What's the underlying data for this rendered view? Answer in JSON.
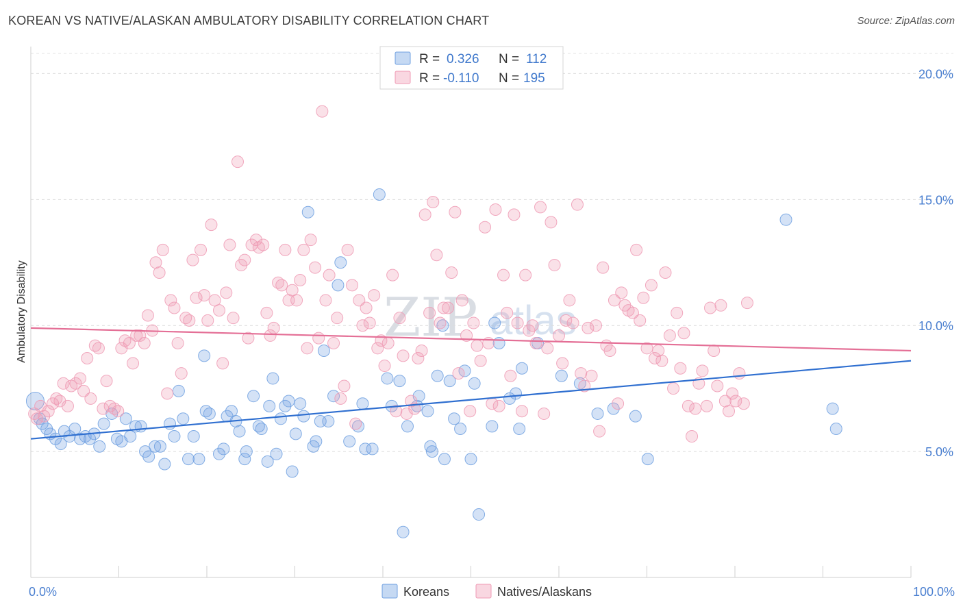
{
  "header": {
    "title": "KOREAN VS NATIVE/ALASKAN AMBULATORY DISABILITY CORRELATION CHART",
    "source": "Source: ZipAtlas.com"
  },
  "watermark": {
    "zip": "ZIP",
    "atlas": "atlas"
  },
  "stats": [
    {
      "r_label": "R =",
      "r_value": "0.326",
      "n_label": "N =",
      "n_value": "112",
      "color": "#6fa0e0"
    },
    {
      "r_label": "R =",
      "r_value": "-0.110",
      "n_label": "N =",
      "n_value": "195",
      "color": "#ef9ab4"
    }
  ],
  "legend": [
    {
      "label": "Koreans",
      "color": "#6fa0e0"
    },
    {
      "label": "Natives/Alaskans",
      "color": "#ef9ab4"
    }
  ],
  "chart_data": {
    "type": "scatter",
    "title": "KOREAN VS NATIVE/ALASKAN AMBULATORY DISABILITY CORRELATION CHART",
    "xlabel": "",
    "ylabel": "Ambulatory Disability",
    "xlim": [
      0,
      100
    ],
    "ylim": [
      0,
      20.8
    ],
    "x_ticks": [
      "0.0%",
      "100.0%"
    ],
    "y_ticks": [
      {
        "value": 5,
        "label": "5.0%"
      },
      {
        "value": 10,
        "label": "10.0%"
      },
      {
        "value": 15,
        "label": "15.0%"
      },
      {
        "value": 20,
        "label": "20.0%"
      }
    ],
    "grid": "horizontal dashed",
    "legend_position": "bottom-center",
    "series": [
      {
        "name": "Koreans",
        "color": "#6fa0e0",
        "trend": {
          "x": [
            0,
            100
          ],
          "y": [
            5.5,
            8.6
          ]
        },
        "points": [
          [
            0.5,
            7.0
          ],
          [
            1.0,
            6.3
          ],
          [
            1.3,
            6.1
          ],
          [
            1.8,
            5.9
          ],
          [
            2.2,
            5.7
          ],
          [
            2.8,
            5.5
          ],
          [
            3.4,
            5.3
          ],
          [
            3.8,
            5.8
          ],
          [
            4.4,
            5.6
          ],
          [
            5.0,
            5.9
          ],
          [
            5.6,
            5.5
          ],
          [
            6.2,
            5.6
          ],
          [
            6.7,
            5.5
          ],
          [
            7.2,
            5.7
          ],
          [
            7.8,
            5.2
          ],
          [
            8.3,
            6.1
          ],
          [
            9.2,
            6.5
          ],
          [
            9.8,
            5.5
          ],
          [
            10.3,
            5.4
          ],
          [
            10.8,
            6.3
          ],
          [
            11.3,
            5.6
          ],
          [
            11.9,
            6.0
          ],
          [
            12.5,
            6.0
          ],
          [
            13.0,
            5.0
          ],
          [
            13.4,
            4.8
          ],
          [
            14.1,
            5.2
          ],
          [
            14.7,
            5.2
          ],
          [
            15.2,
            4.5
          ],
          [
            15.8,
            6.1
          ],
          [
            16.3,
            5.6
          ],
          [
            16.8,
            7.4
          ],
          [
            17.3,
            6.3
          ],
          [
            17.9,
            4.7
          ],
          [
            18.5,
            5.6
          ],
          [
            19.1,
            4.7
          ],
          [
            19.7,
            8.8
          ],
          [
            19.9,
            6.6
          ],
          [
            20.3,
            6.5
          ],
          [
            21.4,
            4.9
          ],
          [
            21.9,
            5.1
          ],
          [
            22.3,
            6.4
          ],
          [
            22.8,
            6.6
          ],
          [
            23.3,
            6.2
          ],
          [
            23.7,
            5.8
          ],
          [
            24.3,
            4.7
          ],
          [
            24.5,
            5.0
          ],
          [
            25.3,
            7.2
          ],
          [
            25.9,
            6.0
          ],
          [
            26.2,
            5.9
          ],
          [
            26.9,
            4.6
          ],
          [
            27.1,
            6.8
          ],
          [
            27.5,
            7.9
          ],
          [
            27.9,
            4.9
          ],
          [
            28.4,
            6.3
          ],
          [
            28.9,
            6.8
          ],
          [
            29.3,
            7.0
          ],
          [
            29.7,
            4.2
          ],
          [
            30.1,
            5.7
          ],
          [
            30.6,
            6.9
          ],
          [
            31.0,
            6.4
          ],
          [
            31.5,
            14.5
          ],
          [
            32.1,
            5.2
          ],
          [
            32.4,
            5.4
          ],
          [
            32.9,
            6.2
          ],
          [
            33.3,
            9.0
          ],
          [
            33.8,
            6.2
          ],
          [
            34.4,
            7.2
          ],
          [
            34.9,
            11.6
          ],
          [
            35.2,
            12.5
          ],
          [
            36.2,
            5.4
          ],
          [
            37.2,
            6.0
          ],
          [
            37.7,
            6.9
          ],
          [
            38.0,
            5.1
          ],
          [
            38.8,
            5.1
          ],
          [
            39.6,
            15.2
          ],
          [
            40.5,
            7.9
          ],
          [
            41.0,
            6.8
          ],
          [
            41.9,
            7.8
          ],
          [
            42.3,
            1.8
          ],
          [
            42.8,
            6.0
          ],
          [
            43.9,
            6.8
          ],
          [
            44.1,
            7.2
          ],
          [
            45.1,
            6.6
          ],
          [
            45.4,
            5.2
          ],
          [
            45.6,
            5.0
          ],
          [
            46.2,
            8.0
          ],
          [
            46.8,
            10.0
          ],
          [
            47.0,
            4.7
          ],
          [
            47.6,
            7.8
          ],
          [
            48.1,
            6.3
          ],
          [
            48.8,
            5.9
          ],
          [
            49.3,
            8.2
          ],
          [
            50.0,
            4.7
          ],
          [
            50.4,
            7.7
          ],
          [
            50.9,
            2.5
          ],
          [
            52.4,
            6.0
          ],
          [
            52.7,
            10.1
          ],
          [
            53.2,
            9.3
          ],
          [
            54.4,
            7.1
          ],
          [
            55.1,
            7.3
          ],
          [
            55.5,
            5.9
          ],
          [
            55.8,
            8.3
          ],
          [
            57.6,
            9.3
          ],
          [
            60.3,
            8.0
          ],
          [
            62.4,
            7.7
          ],
          [
            64.4,
            6.5
          ],
          [
            66.2,
            6.7
          ],
          [
            68.7,
            6.4
          ],
          [
            70.1,
            4.7
          ],
          [
            85.8,
            14.2
          ],
          [
            91.1,
            6.7
          ],
          [
            91.5,
            5.9
          ]
        ]
      },
      {
        "name": "Natives/Alaskans",
        "color": "#ef9ab4",
        "trend": {
          "x": [
            0,
            100
          ],
          "y": [
            9.9,
            9.0
          ]
        },
        "points": [
          [
            0.4,
            6.5
          ],
          [
            0.7,
            6.3
          ],
          [
            1.1,
            6.8
          ],
          [
            1.5,
            6.4
          ],
          [
            2.0,
            6.6
          ],
          [
            2.5,
            6.9
          ],
          [
            2.9,
            7.1
          ],
          [
            3.3,
            7.0
          ],
          [
            3.7,
            7.7
          ],
          [
            4.2,
            6.8
          ],
          [
            4.6,
            7.6
          ],
          [
            5.1,
            7.7
          ],
          [
            5.6,
            7.9
          ],
          [
            6.0,
            7.4
          ],
          [
            6.4,
            8.7
          ],
          [
            6.8,
            7.1
          ],
          [
            7.3,
            9.2
          ],
          [
            7.7,
            9.1
          ],
          [
            8.2,
            6.7
          ],
          [
            8.6,
            7.8
          ],
          [
            9.0,
            6.8
          ],
          [
            9.5,
            6.7
          ],
          [
            9.9,
            6.6
          ],
          [
            10.3,
            9.1
          ],
          [
            10.7,
            9.4
          ],
          [
            11.2,
            9.3
          ],
          [
            11.6,
            8.5
          ],
          [
            12.0,
            9.6
          ],
          [
            12.4,
            9.6
          ],
          [
            12.9,
            9.3
          ],
          [
            13.3,
            10.4
          ],
          [
            13.8,
            9.8
          ],
          [
            14.2,
            12.5
          ],
          [
            14.6,
            12.1
          ],
          [
            15.0,
            13.0
          ],
          [
            15.5,
            7.3
          ],
          [
            15.9,
            11.0
          ],
          [
            16.3,
            10.7
          ],
          [
            16.7,
            9.3
          ],
          [
            17.1,
            8.1
          ],
          [
            17.6,
            10.3
          ],
          [
            18.0,
            10.2
          ],
          [
            18.4,
            12.6
          ],
          [
            18.8,
            11.1
          ],
          [
            19.3,
            13.0
          ],
          [
            19.7,
            11.2
          ],
          [
            20.1,
            10.2
          ],
          [
            20.5,
            14.0
          ],
          [
            20.9,
            11.0
          ],
          [
            21.4,
            10.6
          ],
          [
            21.8,
            8.5
          ],
          [
            22.2,
            11.3
          ],
          [
            22.6,
            13.2
          ],
          [
            23.0,
            10.3
          ],
          [
            23.5,
            16.5
          ],
          [
            23.9,
            12.4
          ],
          [
            24.3,
            12.6
          ],
          [
            24.7,
            9.5
          ],
          [
            25.1,
            13.2
          ],
          [
            25.6,
            13.4
          ],
          [
            25.9,
            13.1
          ],
          [
            26.4,
            13.2
          ],
          [
            26.8,
            10.5
          ],
          [
            27.2,
            9.6
          ],
          [
            27.6,
            9.9
          ],
          [
            28.1,
            11.7
          ],
          [
            28.5,
            11.6
          ],
          [
            28.9,
            13.0
          ],
          [
            29.3,
            11.0
          ],
          [
            29.7,
            11.4
          ],
          [
            30.2,
            11.0
          ],
          [
            30.6,
            11.8
          ],
          [
            31.0,
            13.0
          ],
          [
            31.4,
            9.1
          ],
          [
            31.8,
            13.4
          ],
          [
            32.3,
            12.3
          ],
          [
            32.7,
            9.5
          ],
          [
            33.1,
            18.5
          ],
          [
            33.5,
            11.0
          ],
          [
            33.9,
            12.0
          ],
          [
            34.4,
            9.3
          ],
          [
            34.8,
            10.3
          ],
          [
            35.2,
            7.1
          ],
          [
            35.6,
            7.6
          ],
          [
            36.0,
            13.0
          ],
          [
            36.5,
            11.6
          ],
          [
            36.9,
            6.1
          ],
          [
            37.3,
            11.0
          ],
          [
            37.7,
            10.0
          ],
          [
            38.1,
            10.7
          ],
          [
            38.5,
            10.1
          ],
          [
            39.0,
            11.2
          ],
          [
            39.4,
            9.1
          ],
          [
            39.8,
            9.4
          ],
          [
            40.2,
            8.4
          ],
          [
            40.6,
            9.3
          ],
          [
            41.1,
            12.0
          ],
          [
            41.5,
            6.6
          ],
          [
            41.9,
            10.3
          ],
          [
            42.3,
            8.8
          ],
          [
            42.7,
            6.5
          ],
          [
            43.2,
            7.0
          ],
          [
            43.6,
            6.7
          ],
          [
            44.0,
            8.7
          ],
          [
            44.4,
            9.0
          ],
          [
            44.8,
            14.4
          ],
          [
            45.3,
            10.5
          ],
          [
            45.7,
            14.9
          ],
          [
            46.1,
            12.8
          ],
          [
            46.5,
            10.1
          ],
          [
            46.9,
            10.7
          ],
          [
            47.4,
            10.7
          ],
          [
            47.8,
            12.1
          ],
          [
            48.2,
            14.5
          ],
          [
            48.6,
            8.1
          ],
          [
            49.0,
            11.0
          ],
          [
            49.5,
            9.6
          ],
          [
            49.9,
            6.6
          ],
          [
            50.3,
            10.1
          ],
          [
            50.7,
            9.2
          ],
          [
            51.1,
            8.6
          ],
          [
            51.6,
            13.9
          ],
          [
            52.0,
            9.3
          ],
          [
            52.4,
            6.9
          ],
          [
            52.8,
            14.6
          ],
          [
            53.2,
            6.8
          ],
          [
            53.7,
            12.0
          ],
          [
            54.1,
            10.5
          ],
          [
            54.5,
            8.0
          ],
          [
            54.9,
            14.4
          ],
          [
            55.3,
            10.1
          ],
          [
            55.8,
            6.6
          ],
          [
            56.2,
            12.0
          ],
          [
            56.6,
            9.8
          ],
          [
            57.0,
            10.0
          ],
          [
            57.4,
            9.3
          ],
          [
            57.9,
            14.7
          ],
          [
            58.3,
            6.5
          ],
          [
            58.7,
            9.1
          ],
          [
            59.1,
            14.1
          ],
          [
            59.5,
            12.4
          ],
          [
            60.0,
            9.6
          ],
          [
            60.4,
            8.5
          ],
          [
            60.8,
            10.2
          ],
          [
            61.2,
            11.0
          ],
          [
            61.6,
            10.1
          ],
          [
            62.1,
            14.8
          ],
          [
            62.5,
            8.1
          ],
          [
            62.9,
            7.6
          ],
          [
            63.3,
            9.9
          ],
          [
            63.7,
            8.0
          ],
          [
            64.2,
            10.0
          ],
          [
            64.6,
            5.8
          ],
          [
            65.0,
            12.3
          ],
          [
            65.4,
            9.2
          ],
          [
            65.8,
            9.0
          ],
          [
            66.3,
            11.0
          ],
          [
            66.7,
            6.9
          ],
          [
            67.1,
            11.3
          ],
          [
            67.5,
            10.8
          ],
          [
            67.9,
            10.6
          ],
          [
            68.4,
            10.5
          ],
          [
            68.8,
            13.0
          ],
          [
            69.2,
            10.2
          ],
          [
            69.6,
            11.1
          ],
          [
            70.0,
            9.1
          ],
          [
            70.5,
            11.6
          ],
          [
            70.9,
            8.7
          ],
          [
            71.3,
            9.0
          ],
          [
            71.7,
            8.6
          ],
          [
            72.1,
            12.1
          ],
          [
            72.6,
            9.6
          ],
          [
            73.0,
            7.5
          ],
          [
            73.4,
            10.5
          ],
          [
            73.8,
            8.3
          ],
          [
            74.2,
            9.7
          ],
          [
            74.7,
            6.8
          ],
          [
            75.1,
            5.6
          ],
          [
            75.5,
            6.7
          ],
          [
            75.9,
            7.7
          ],
          [
            76.3,
            8.2
          ],
          [
            76.8,
            6.8
          ],
          [
            77.2,
            10.7
          ],
          [
            77.6,
            9.0
          ],
          [
            78.0,
            7.6
          ],
          [
            78.4,
            10.8
          ],
          [
            78.9,
            7.0
          ],
          [
            79.3,
            6.6
          ],
          [
            79.7,
            7.3
          ],
          [
            80.1,
            7.0
          ],
          [
            80.5,
            8.1
          ],
          [
            81.0,
            6.9
          ],
          [
            81.4,
            10.9
          ]
        ]
      }
    ]
  }
}
